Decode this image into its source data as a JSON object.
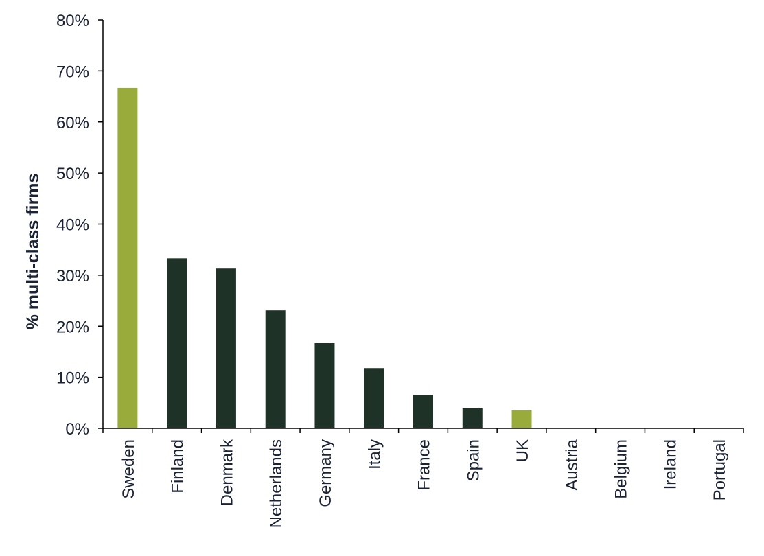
{
  "chart_data": {
    "type": "bar",
    "title": "",
    "xlabel": "",
    "ylabel": "% multi-class firms",
    "ylim": [
      0,
      80
    ],
    "y_ticks": [
      0,
      10,
      20,
      30,
      40,
      50,
      60,
      70,
      80
    ],
    "y_tick_labels": [
      "0%",
      "10%",
      "20%",
      "30%",
      "40%",
      "50%",
      "60%",
      "70%",
      "80%"
    ],
    "grid": false,
    "legend": "none",
    "categories": [
      "Sweden",
      "Finland",
      "Denmark",
      "Netherlands",
      "Germany",
      "Italy",
      "France",
      "Spain",
      "UK",
      "Austria",
      "Belgium",
      "Ireland",
      "Portugal"
    ],
    "values": [
      66.7,
      33.3,
      31.3,
      23.1,
      16.7,
      11.8,
      6.5,
      3.9,
      3.5,
      0,
      0,
      0,
      0
    ],
    "highlighted": [
      "Sweden",
      "UK"
    ],
    "colors": {
      "default_bar": "#1e3228",
      "highlight_bar": "#99ab3b",
      "axis": "#000000",
      "text": "#1a2234"
    }
  }
}
